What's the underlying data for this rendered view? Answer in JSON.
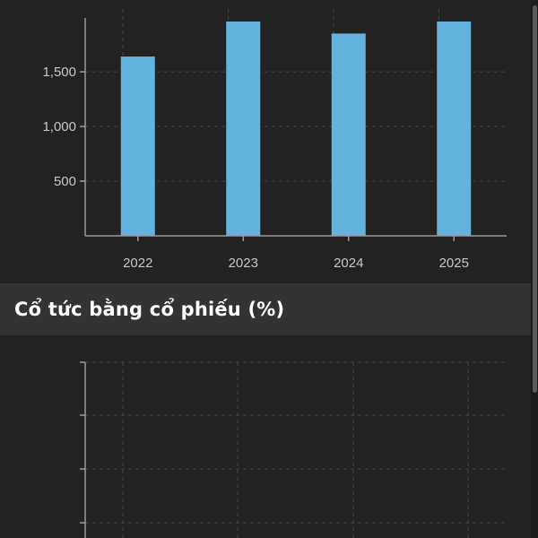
{
  "dividend_chart": {
    "chart_data": {
      "type": "bar",
      "categories": [
        "2022",
        "2023",
        "2024",
        "2025"
      ],
      "values": [
        1640,
        1960,
        1850,
        1960
      ],
      "yticks": [
        500,
        1000,
        1500
      ],
      "ytick_labels": [
        "500",
        "1,000",
        "1,500"
      ],
      "ylim": [
        0,
        1960
      ],
      "grid": true,
      "bar_color": "#62b4de"
    }
  },
  "stock_dividend_section": {
    "title": "Cổ tức bằng cổ phiếu (%)"
  },
  "stock_dividend_chart": {
    "chart_data": {
      "type": "bar",
      "categories": [],
      "values": [],
      "grid": true
    }
  },
  "theme": {
    "background": "#222222",
    "header_background": "#333333",
    "axis_color": "#9a9a9a",
    "grid_color": "#444444",
    "text_color": "#c8c8c8"
  }
}
